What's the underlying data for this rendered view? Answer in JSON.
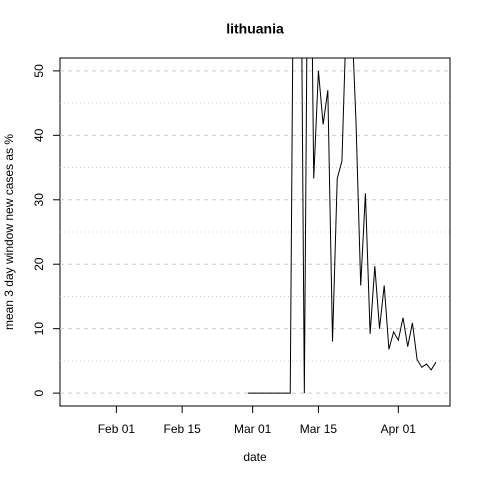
{
  "chart_data": {
    "type": "line",
    "title": "lithuania",
    "x_label": "date",
    "y_label": "mean  3  day window new cases as %",
    "x": [
      "Feb 29",
      "Mar 01",
      "Mar 02",
      "Mar 03",
      "Mar 04",
      "Mar 05",
      "Mar 06",
      "Mar 07",
      "Mar 08",
      "Mar 09",
      "Mar 10",
      "Mar 11",
      "Mar 12",
      "Mar 13",
      "Mar 14",
      "Mar 15",
      "Mar 16",
      "Mar 17",
      "Mar 18",
      "Mar 19",
      "Mar 20",
      "Mar 21",
      "Mar 22",
      "Mar 23",
      "Mar 24",
      "Mar 25",
      "Mar 26",
      "Mar 27",
      "Mar 28",
      "Mar 29",
      "Mar 30",
      "Mar 31",
      "Apr 01",
      "Apr 02",
      "Apr 03",
      "Apr 04",
      "Apr 05",
      "Apr 06",
      "Apr 07",
      "Apr 08",
      "Apr 09"
    ],
    "series": [
      {
        "name": "lithuania",
        "color": "#000000",
        "values": [
          0,
          0,
          0,
          0,
          0,
          0,
          0,
          0,
          0,
          0,
          100,
          100,
          0,
          100,
          33.3,
          50,
          41.7,
          47,
          8,
          33.3,
          36,
          60,
          60,
          42,
          16.7,
          31,
          9.2,
          19.7,
          10,
          16.7,
          6.8,
          9.5,
          8.2,
          11.7,
          7.2,
          10.9,
          5.2,
          4.0,
          4.5,
          3.6,
          4.8
        ]
      }
    ],
    "xlim": [
      "Jan 20",
      "Apr 12"
    ],
    "xticks": [
      "Feb 01",
      "Feb 15",
      "Mar 01",
      "Mar 15",
      "Apr 01"
    ],
    "ylim": [
      -2,
      52
    ],
    "yticks": [
      0,
      10,
      20,
      30,
      40,
      50
    ],
    "yminor_grid": [
      5,
      15,
      25,
      35,
      45
    ],
    "grid": true
  }
}
